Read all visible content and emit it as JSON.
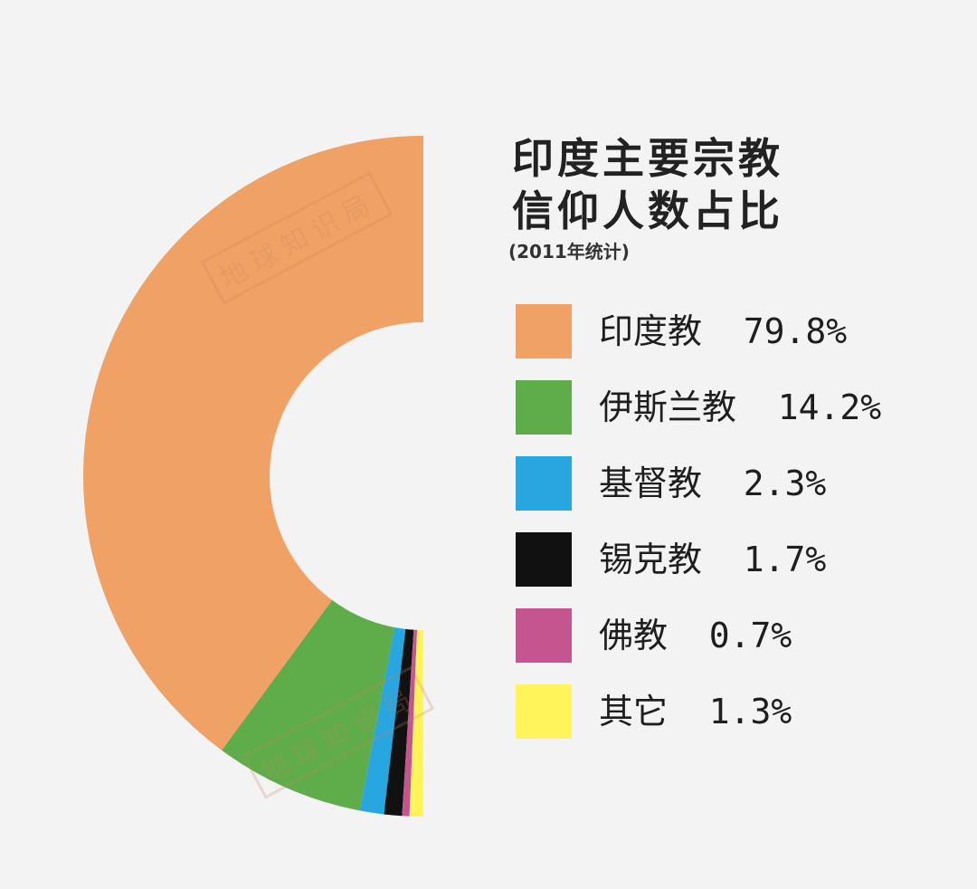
{
  "title_lines": [
    "印度主要宗教",
    "信仰人数占比"
  ],
  "subtitle": "(2011年统计)",
  "chart_data": {
    "type": "pie",
    "variant": "half-donut",
    "series": [
      {
        "name": "印度教",
        "value": 79.8,
        "color": "#f0a266"
      },
      {
        "name": "伊斯兰教",
        "value": 14.2,
        "color": "#5fad4a"
      },
      {
        "name": "基督教",
        "value": 2.3,
        "color": "#27a6e0"
      },
      {
        "name": "锡克教",
        "value": 1.7,
        "color": "#111111"
      },
      {
        "name": "佛教",
        "value": 0.7,
        "color": "#c4558f"
      },
      {
        "name": "其它",
        "value": 1.3,
        "color": "#fff45a"
      }
    ],
    "legend_labels": [
      "印度教  79.8%",
      "伊斯兰教  14.2%",
      "基督教  2.3%",
      "锡克教  1.7%",
      "佛教  0.7%",
      "其它  1.3%"
    ],
    "legend_position": "right"
  },
  "watermark": "地球知识局"
}
